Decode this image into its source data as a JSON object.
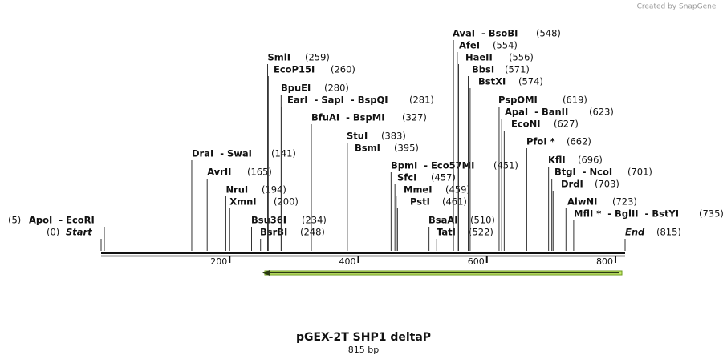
{
  "watermark": "Created by SnapGene",
  "map": {
    "title": "pGEX-2T SHP1 deltaP",
    "length_label": "815 bp",
    "xlim": [
      0,
      815
    ],
    "ticks": [
      200,
      400,
      600,
      800
    ],
    "sites": [
      {
        "label": "ApoI  - EcoRI",
        "position": 5,
        "position_label": "(5)"
      },
      {
        "label": "Start",
        "position": 0,
        "position_label": "(0)"
      },
      {
        "label": "DraI  - SwaI",
        "position": 141,
        "position_label": "(141)"
      },
      {
        "label": "AvrII",
        "position": 165,
        "position_label": "(165)"
      },
      {
        "label": "NruI",
        "position": 194,
        "position_label": "(194)"
      },
      {
        "label": "XmnI",
        "position": 200,
        "position_label": "(200)"
      },
      {
        "label": "Bsu36I",
        "position": 234,
        "position_label": "(234)"
      },
      {
        "label": "BsrBI",
        "position": 248,
        "position_label": "(248)"
      },
      {
        "label": "SmlI",
        "position": 259,
        "position_label": "(259)"
      },
      {
        "label": "EcoP15I",
        "position": 260,
        "position_label": "(260)"
      },
      {
        "label": "BpuEI",
        "position": 280,
        "position_label": "(280)"
      },
      {
        "label": "EarI  - SapI  - BspQI",
        "position": 281,
        "position_label": "(281)"
      },
      {
        "label": "BfuAI  - BspMI",
        "position": 327,
        "position_label": "(327)"
      },
      {
        "label": "StuI",
        "position": 383,
        "position_label": "(383)"
      },
      {
        "label": "BsmI",
        "position": 395,
        "position_label": "(395)"
      },
      {
        "label": "BpmI  - Eco57MI",
        "position": 451,
        "position_label": "(451)"
      },
      {
        "label": "SfcI",
        "position": 457,
        "position_label": "(457)"
      },
      {
        "label": "MmeI",
        "position": 459,
        "position_label": "(459)"
      },
      {
        "label": "PstI",
        "position": 461,
        "position_label": "(461)"
      },
      {
        "label": "BsaAI",
        "position": 510,
        "position_label": "(510)"
      },
      {
        "label": "TatI",
        "position": 522,
        "position_label": "(522)"
      },
      {
        "label": "AvaI  - BsoBI",
        "position": 548,
        "position_label": "(548)"
      },
      {
        "label": "AfeI",
        "position": 554,
        "position_label": "(554)"
      },
      {
        "label": "HaeII",
        "position": 556,
        "position_label": "(556)"
      },
      {
        "label": "BbsI",
        "position": 571,
        "position_label": "(571)"
      },
      {
        "label": "BstXI",
        "position": 574,
        "position_label": "(574)"
      },
      {
        "label": "PspOMI",
        "position": 619,
        "position_label": "(619)"
      },
      {
        "label": "ApaI  - BanII",
        "position": 623,
        "position_label": "(623)"
      },
      {
        "label": "EcoNI",
        "position": 627,
        "position_label": "(627)"
      },
      {
        "label": "PfoI *",
        "position": 662,
        "position_label": "(662)"
      },
      {
        "label": "KflI",
        "position": 696,
        "position_label": "(696)"
      },
      {
        "label": "BtgI  - NcoI",
        "position": 701,
        "position_label": "(701)"
      },
      {
        "label": "DrdI",
        "position": 703,
        "position_label": "(703)"
      },
      {
        "label": "AlwNI",
        "position": 723,
        "position_label": "(723)"
      },
      {
        "label": "MflI *  - BglII  - BstYI",
        "position": 735,
        "position_label": "(735)"
      },
      {
        "label": "End",
        "position": 815,
        "position_label": "(815)"
      }
    ]
  }
}
